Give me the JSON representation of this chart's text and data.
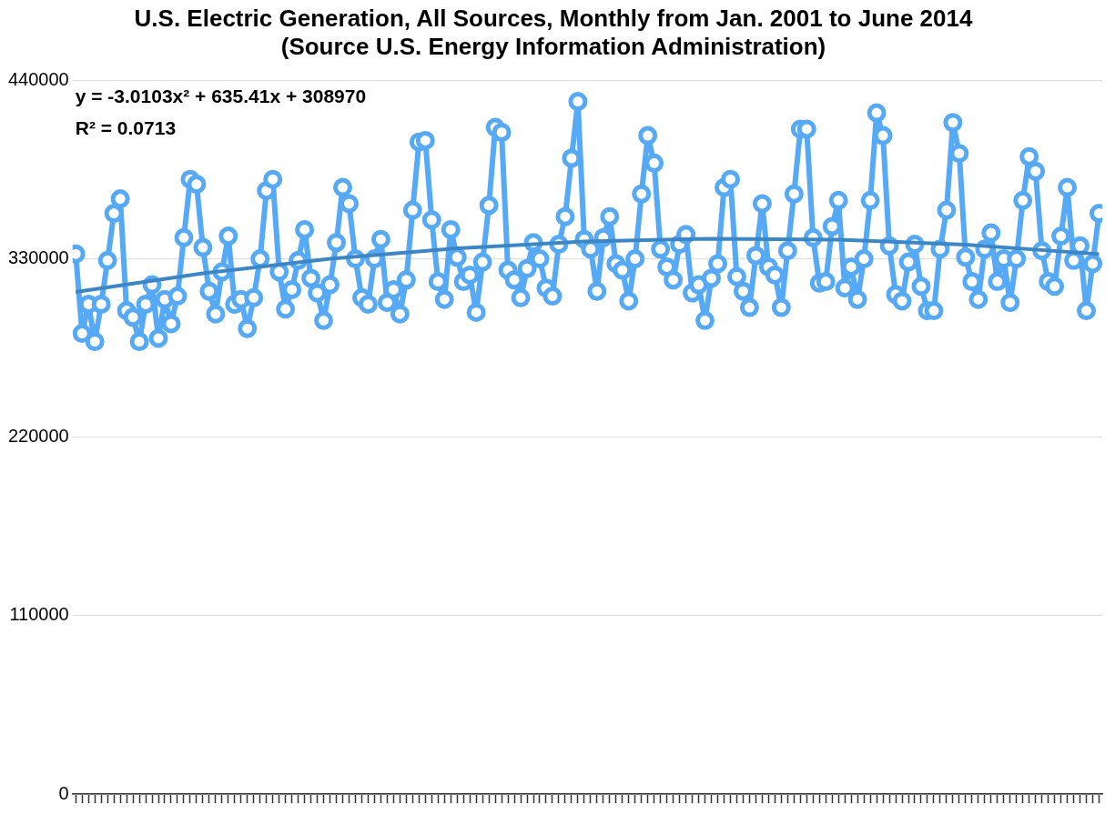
{
  "chart_data": {
    "type": "line",
    "title": "U.S. Electric Generation, All Sources, Monthly from Jan. 2001 to June 2014",
    "subtitle": "(Source U.S. Energy Information Administration)",
    "categories": [
      null,
      null,
      null,
      null,
      null,
      null,
      null,
      null,
      null,
      null,
      null,
      null,
      null,
      null,
      null,
      null,
      null,
      null,
      null,
      null,
      null,
      null,
      null,
      null,
      null,
      null,
      null,
      null,
      null,
      null,
      null,
      null,
      null,
      null,
      null,
      null,
      null,
      null,
      null,
      null,
      null,
      null,
      null,
      null,
      null,
      null,
      null,
      null,
      null,
      null,
      null,
      null,
      null,
      null,
      null,
      null,
      null,
      null,
      null,
      null,
      null,
      null,
      null,
      null,
      null,
      null,
      null,
      null,
      null,
      null,
      null,
      null,
      null,
      null,
      null,
      null,
      null,
      null,
      null,
      null,
      null,
      null,
      null,
      null,
      null,
      null,
      null,
      null,
      null,
      null,
      null,
      null,
      null,
      null,
      null,
      null,
      null,
      null,
      null,
      null,
      null,
      null,
      null,
      null,
      null,
      null,
      null,
      null,
      null,
      null,
      null,
      null,
      null,
      null,
      null,
      null,
      null,
      null,
      null,
      null,
      null,
      null,
      null,
      null,
      null,
      null,
      null,
      null,
      null,
      null,
      null,
      null,
      null,
      null,
      null,
      null,
      null,
      null,
      null,
      null,
      null,
      null,
      null,
      null,
      null,
      null,
      null,
      null,
      null,
      null,
      null,
      null,
      null,
      null,
      null,
      null,
      null,
      null,
      null,
      null,
      null,
      null
    ],
    "series": [
      {
        "color": "#55a9f5",
        "values": [
          333000,
          284000,
          302000,
          279000,
          302000,
          329000,
          358000,
          367000,
          298000,
          294000,
          279000,
          302000,
          314000,
          281000,
          305000,
          290000,
          307000,
          343000,
          379000,
          376000,
          337000,
          310000,
          296000,
          322000,
          344000,
          302000,
          305000,
          287000,
          306000,
          330000,
          372000,
          379000,
          322000,
          299000,
          311000,
          329000,
          348000,
          318000,
          309000,
          292000,
          314000,
          340000,
          374000,
          364000,
          330000,
          306000,
          302000,
          330000,
          342000,
          303000,
          311000,
          296000,
          317000,
          360000,
          402000,
          403000,
          354000,
          316000,
          305000,
          348000,
          331000,
          316000,
          320000,
          297000,
          328000,
          363000,
          411000,
          408000,
          323000,
          317000,
          306000,
          324000,
          340000,
          330000,
          312000,
          307000,
          339000,
          356000,
          392000,
          427000,
          342000,
          336000,
          310000,
          343000,
          356000,
          327000,
          323000,
          304000,
          330000,
          370000,
          406000,
          389000,
          336000,
          325000,
          317000,
          339000,
          345000,
          309000,
          314000,
          292000,
          318000,
          327000,
          374000,
          379000,
          319000,
          310000,
          300000,
          332000,
          364000,
          325000,
          320000,
          300000,
          335000,
          370000,
          410000,
          410000,
          343000,
          315000,
          316000,
          350000,
          366000,
          312000,
          325000,
          305000,
          330000,
          366000,
          420000,
          406000,
          338000,
          308000,
          304000,
          328000,
          339000,
          313000,
          298000,
          298000,
          336000,
          360000,
          414000,
          395000,
          331000,
          316000,
          305000,
          336000,
          346000,
          316000,
          330000,
          303000,
          330000,
          366000,
          393000,
          384000,
          335000,
          316000,
          313000,
          344000,
          374000,
          329000,
          338000,
          298000,
          327000,
          358000
        ]
      },
      {
        "type": "line",
        "marker": "none",
        "color": "#3d86c6",
        "values": [
          309600,
          null,
          null,
          null,
          null,
          null,
          null,
          null,
          null,
          null,
          null,
          null,
          null,
          null,
          null,
          null,
          null,
          null,
          null,
          null,
          321000,
          null,
          null,
          null,
          null,
          null,
          null,
          null,
          null,
          null,
          null,
          null,
          null,
          null,
          null,
          null,
          null,
          null,
          null,
          null,
          330000,
          null,
          null,
          null,
          null,
          null,
          null,
          null,
          null,
          null,
          null,
          null,
          null,
          null,
          null,
          null,
          null,
          null,
          null,
          null,
          336500,
          null,
          null,
          null,
          null,
          null,
          null,
          null,
          null,
          null,
          null,
          null,
          null,
          null,
          null,
          null,
          null,
          null,
          null,
          null,
          340700,
          null,
          null,
          null,
          null,
          null,
          null,
          null,
          null,
          null,
          null,
          null,
          null,
          null,
          null,
          null,
          null,
          null,
          null,
          null,
          342400,
          null,
          null,
          null,
          null,
          null,
          null,
          null,
          null,
          null,
          null,
          null,
          null,
          null,
          null,
          null,
          null,
          null,
          null,
          null,
          341800,
          null,
          null,
          null,
          null,
          null,
          null,
          null,
          null,
          null,
          null,
          null,
          null,
          null,
          null,
          null,
          null,
          null,
          null,
          null,
          338700,
          null,
          null,
          null,
          null,
          null,
          null,
          null,
          null,
          null,
          null,
          null,
          null,
          null,
          null,
          null,
          null,
          null,
          null,
          null,
          null,
          332900
        ]
      }
    ],
    "ylim": [
      0,
      440000
    ],
    "yticks": [
      0,
      110000,
      220000,
      330000,
      440000
    ],
    "grid": "y",
    "legend": false,
    "marker": "circle",
    "line_style": "solid",
    "annotations": [
      "y = -3.0103x² + 635.41x + 308970",
      "R² = 0.0713"
    ]
  }
}
